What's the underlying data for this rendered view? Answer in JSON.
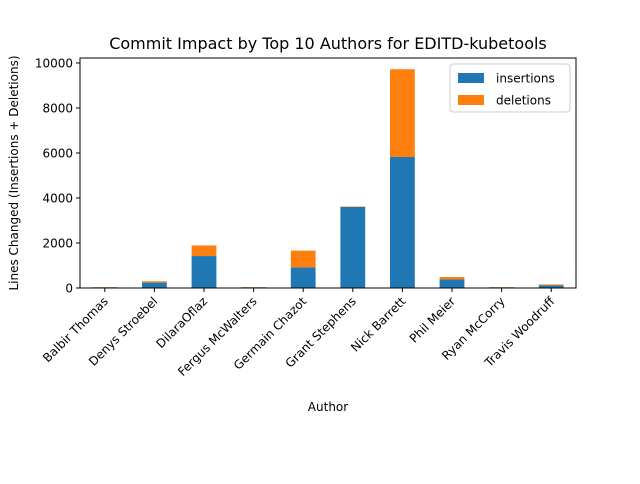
{
  "chart_data": {
    "type": "bar",
    "stacked": true,
    "title": "Commit Impact by Top 10 Authors for EDITD-kubetools",
    "xlabel": "Author",
    "ylabel": "Lines Changed (Insertions + Deletions)",
    "categories": [
      "Balbir Thomas",
      "Denys Stroebel",
      "DilaraOflaz",
      "Fergus McWalters",
      "Germain Chazot",
      "Grant Stephens",
      "Nick Barrett",
      "Phil Meier",
      "Ryan McCorry",
      "Travis Woodruff"
    ],
    "series": [
      {
        "name": "insertions",
        "color": "#1f77b4",
        "values": [
          30,
          240,
          1420,
          30,
          920,
          3600,
          5820,
          380,
          30,
          120
        ]
      },
      {
        "name": "deletions",
        "color": "#ff7f0e",
        "values": [
          10,
          60,
          470,
          10,
          740,
          20,
          3900,
          110,
          10,
          40
        ]
      }
    ],
    "ylim": [
      0,
      10220
    ],
    "yticks": [
      0,
      2000,
      4000,
      6000,
      8000,
      10000
    ],
    "legend_position": "top-right",
    "grid": false
  }
}
